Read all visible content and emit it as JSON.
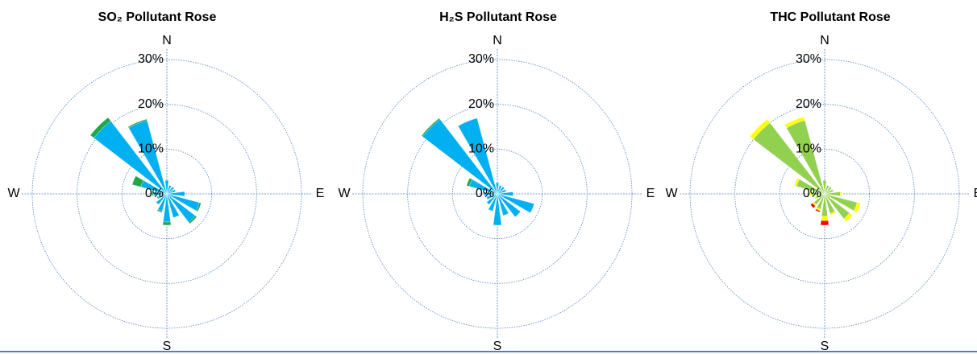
{
  "chart_data": [
    {
      "type": "rose",
      "title": "SO₂ Pollutant Rose",
      "compass": [
        "N",
        "E",
        "S",
        "W"
      ],
      "x": [
        0,
        22.5,
        45,
        67.5,
        90,
        112.5,
        135,
        157.5,
        180,
        202.5,
        225,
        247.5,
        270,
        292.5,
        315,
        337.5
      ],
      "series": [
        {
          "color": "#00b0f0",
          "values": [
            3,
            2,
            2,
            2,
            4,
            7.5,
            8,
            5.5,
            6.3,
            4,
            3,
            2,
            3,
            6,
            20.5,
            17
          ]
        },
        {
          "color": "#1fa84a",
          "values": [
            0,
            0,
            0,
            0,
            0,
            0.4,
            0.4,
            0,
            0.7,
            0.3,
            0,
            0.3,
            0.3,
            2,
            1,
            0.3
          ]
        }
      ],
      "rlim": [
        0,
        30
      ],
      "rticks": [
        {
          "value": 0,
          "label": "0%"
        },
        {
          "value": 10,
          "label": "10%"
        },
        {
          "value": 20,
          "label": "20%"
        },
        {
          "value": 30,
          "label": "30%"
        }
      ]
    },
    {
      "type": "rose",
      "title": "H₂S Pollutant Rose",
      "compass": [
        "N",
        "E",
        "S",
        "W"
      ],
      "x": [
        0,
        22.5,
        45,
        67.5,
        90,
        112.5,
        135,
        157.5,
        180,
        202.5,
        225,
        247.5,
        270,
        292.5,
        315,
        337.5
      ],
      "series": [
        {
          "color": "#00b0f0",
          "values": [
            2.5,
            2,
            2,
            2,
            3.5,
            8.5,
            6.5,
            5,
            7,
            4,
            3,
            2.5,
            3,
            6.5,
            21,
            17.5
          ]
        },
        {
          "color": "#1fa84a",
          "values": [
            0,
            0,
            0,
            0,
            0,
            0,
            0,
            0,
            0,
            0,
            0,
            0,
            0,
            0.6,
            0.3,
            0
          ]
        }
      ],
      "rlim": [
        0,
        30
      ],
      "rticks": [
        {
          "value": 0,
          "label": "0%"
        },
        {
          "value": 10,
          "label": "10%"
        },
        {
          "value": 20,
          "label": "20%"
        },
        {
          "value": 30,
          "label": "30%"
        }
      ]
    },
    {
      "type": "rose",
      "title": "THC Pollutant Rose",
      "compass": [
        "N",
        "E",
        "S",
        "W"
      ],
      "x": [
        0,
        22.5,
        45,
        67.5,
        90,
        112.5,
        135,
        157.5,
        180,
        202.5,
        225,
        247.5,
        270,
        292.5,
        315,
        337.5
      ],
      "series": [
        {
          "color": "#92d050",
          "values": [
            3,
            2,
            2,
            2,
            3.5,
            7.5,
            7,
            4.5,
            5,
            3.5,
            3,
            2,
            3,
            6.5,
            20,
            17
          ]
        },
        {
          "color": "#ffff00",
          "values": [
            0,
            0,
            0,
            0,
            0.3,
            0.8,
            0.8,
            0.4,
            1,
            0.4,
            0.4,
            0.3,
            0.3,
            0.5,
            1,
            0.8
          ]
        },
        {
          "color": "#ff0000",
          "values": [
            0,
            0,
            0,
            0,
            0,
            0,
            0,
            0,
            1,
            0.3,
            0.6,
            0,
            0,
            0,
            0,
            0
          ]
        }
      ],
      "rlim": [
        0,
        30
      ],
      "rticks": [
        {
          "value": 0,
          "label": "0%"
        },
        {
          "value": 10,
          "label": "10%"
        },
        {
          "value": 20,
          "label": "20%"
        },
        {
          "value": 30,
          "label": "30%"
        }
      ]
    }
  ]
}
